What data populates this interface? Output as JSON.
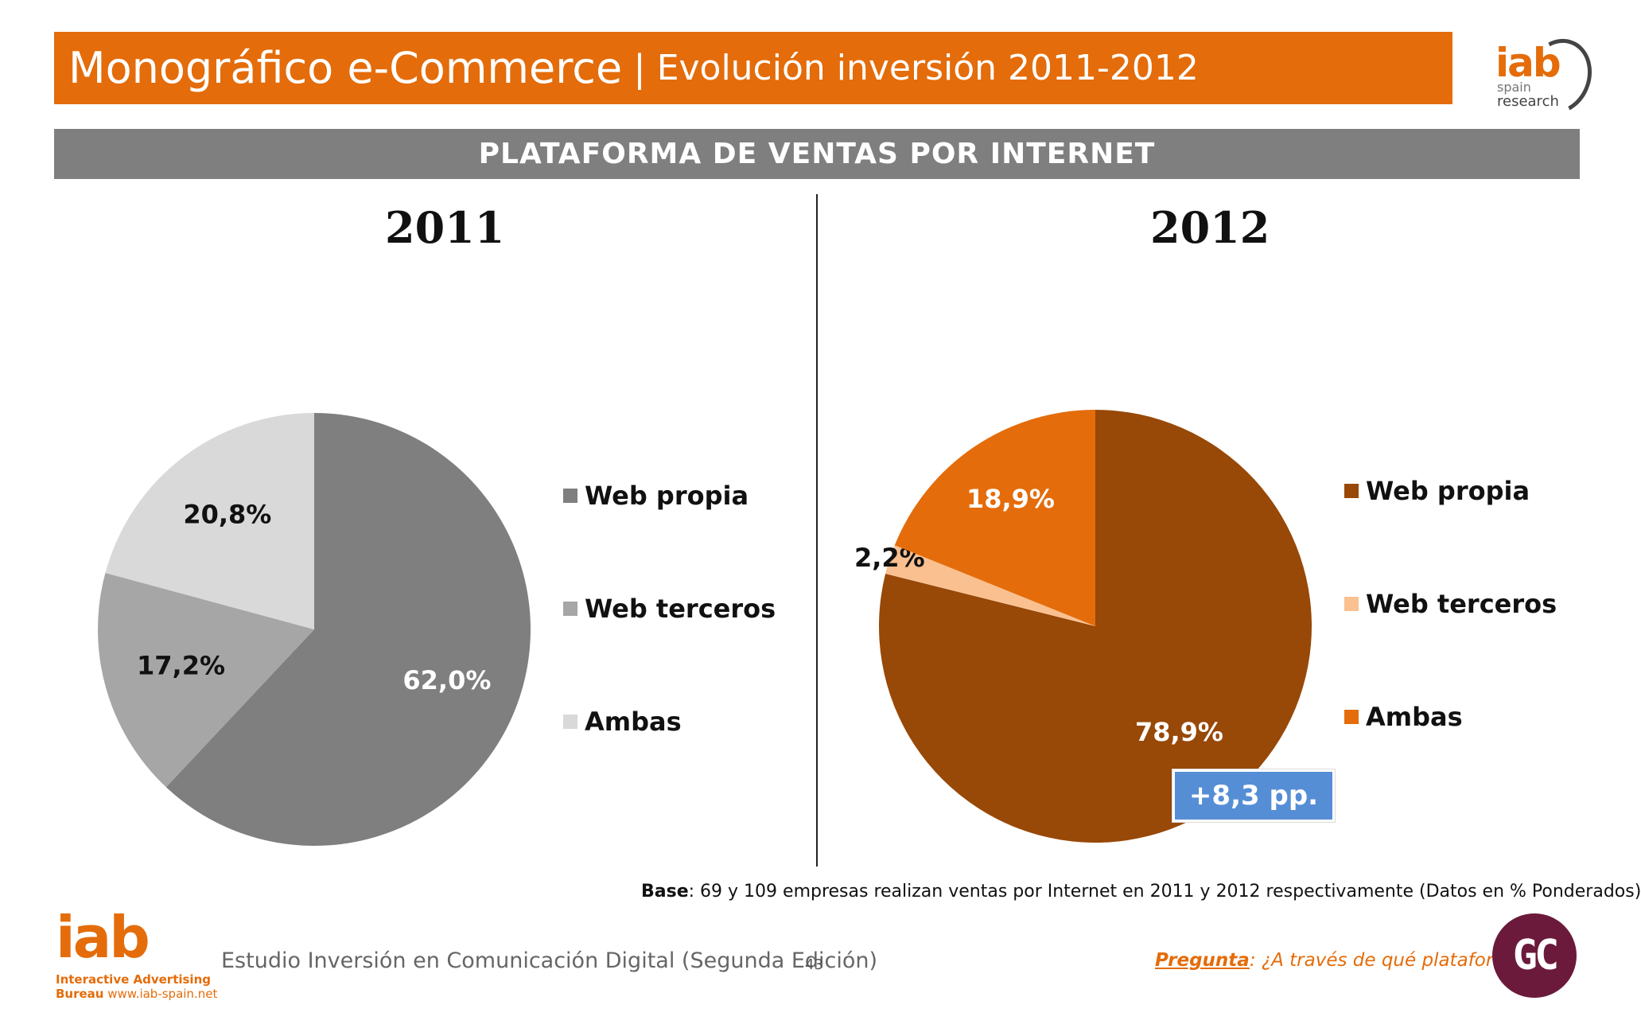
{
  "header": {
    "title": "Monográfico e-Commerce",
    "separator": "|",
    "subtitle": "Evolución inversión 2011-2012"
  },
  "brand_top": {
    "name": "iab",
    "line1": "spain",
    "line2": "research"
  },
  "section": {
    "title": "PLATAFORMA DE VENTAS POR INTERNET"
  },
  "chart_data": [
    {
      "type": "pie",
      "title": "2011",
      "categories": [
        "Web propia",
        "Web terceros",
        "Ambas"
      ],
      "values": [
        62.0,
        17.2,
        20.8
      ],
      "value_labels": [
        "62,0%",
        "17,2%",
        "20,8%"
      ],
      "colors": [
        "#7f7f7f",
        "#a6a6a6",
        "#d9d9d9"
      ],
      "label_colors": [
        "#ffffff",
        "#111111",
        "#111111"
      ],
      "legend_position": "right"
    },
    {
      "type": "pie",
      "title": "2012",
      "categories": [
        "Web propia",
        "Web terceros",
        "Ambas"
      ],
      "values": [
        78.9,
        2.2,
        18.9
      ],
      "value_labels": [
        "78,9%",
        "2,2%",
        "18,9%"
      ],
      "colors": [
        "#984807",
        "#fac090",
        "#e46c0a"
      ],
      "label_colors": [
        "#ffffff",
        "#111111",
        "#ffffff"
      ],
      "legend_position": "right",
      "annotation": "+8,3 pp."
    }
  ],
  "base_note": {
    "label": "Base",
    "text": ": 69 y 109 empresas realizan ventas por Internet en 2011 y 2012 respectivamente (Datos en % Ponderados)"
  },
  "brand_bottom": {
    "name": "iab",
    "line1": "Interactive Advertising",
    "line2_bold": "Bureau",
    "line2_url": " www.iab-spain.net"
  },
  "footer": {
    "study": "Estudio Inversión en Comunicación Digital (Segunda Edición)",
    "page": "43"
  },
  "question": {
    "label": "Pregunta",
    "colon": ":",
    "text": " ¿A través de qué plataforma?"
  },
  "gc_logo": {
    "text": "GC"
  }
}
